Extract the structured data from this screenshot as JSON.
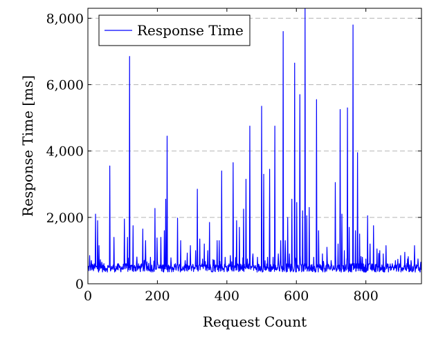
{
  "colors": {
    "series": "#0000ff",
    "grid": "#b3b3b3",
    "axis": "#000000"
  },
  "chart_data": {
    "type": "line",
    "title": "",
    "xlabel": "Request Count",
    "ylabel": "Response Time [ms]",
    "xlim": [
      0,
      960
    ],
    "ylim": [
      0,
      8300
    ],
    "x_ticks": [
      0,
      200,
      400,
      600,
      800
    ],
    "x_tick_labels": [
      "0",
      "200",
      "400",
      "600",
      "800"
    ],
    "y_ticks": [
      0,
      2000,
      4000,
      6000,
      8000
    ],
    "y_tick_labels": [
      "0",
      "2,000",
      "4,000",
      "6,000",
      "8,000"
    ],
    "grid": "horizontal dashed (major y)",
    "legend_position": "top-left",
    "series": [
      {
        "name": "Response Time",
        "baseline": 480,
        "peaks": [
          [
            5,
            850
          ],
          [
            10,
            700
          ],
          [
            22,
            2100
          ],
          [
            28,
            1900
          ],
          [
            32,
            1150
          ],
          [
            40,
            650
          ],
          [
            63,
            3550
          ],
          [
            75,
            1400
          ],
          [
            105,
            1950
          ],
          [
            114,
            1400
          ],
          [
            120,
            6850
          ],
          [
            130,
            1750
          ],
          [
            140,
            650
          ],
          [
            158,
            1650
          ],
          [
            166,
            1300
          ],
          [
            180,
            800
          ],
          [
            193,
            2270
          ],
          [
            199,
            1380
          ],
          [
            210,
            1400
          ],
          [
            220,
            1600
          ],
          [
            224,
            2550
          ],
          [
            228,
            4450
          ],
          [
            240,
            600
          ],
          [
            258,
            1980
          ],
          [
            267,
            1300
          ],
          [
            280,
            700
          ],
          [
            295,
            1150
          ],
          [
            310,
            1000
          ],
          [
            315,
            2850
          ],
          [
            322,
            1350
          ],
          [
            335,
            1200
          ],
          [
            345,
            1000
          ],
          [
            350,
            1850
          ],
          [
            362,
            700
          ],
          [
            372,
            1300
          ],
          [
            378,
            1300
          ],
          [
            385,
            3400
          ],
          [
            395,
            800
          ],
          [
            410,
            850
          ],
          [
            418,
            3650
          ],
          [
            428,
            1900
          ],
          [
            436,
            1700
          ],
          [
            448,
            2250
          ],
          [
            455,
            3150
          ],
          [
            466,
            4750
          ],
          [
            475,
            900
          ],
          [
            488,
            800
          ],
          [
            500,
            5350
          ],
          [
            506,
            3300
          ],
          [
            517,
            800
          ],
          [
            523,
            3450
          ],
          [
            533,
            800
          ],
          [
            538,
            4750
          ],
          [
            548,
            900
          ],
          [
            555,
            1300
          ],
          [
            562,
            7600
          ],
          [
            568,
            1300
          ],
          [
            575,
            2000
          ],
          [
            580,
            900
          ],
          [
            587,
            2550
          ],
          [
            595,
            6650
          ],
          [
            601,
            2450
          ],
          [
            610,
            5700
          ],
          [
            618,
            2200
          ],
          [
            625,
            8300
          ],
          [
            630,
            2050
          ],
          [
            637,
            2300
          ],
          [
            650,
            800
          ],
          [
            658,
            5550
          ],
          [
            664,
            1600
          ],
          [
            675,
            900
          ],
          [
            688,
            1100
          ],
          [
            700,
            700
          ],
          [
            712,
            3050
          ],
          [
            720,
            1200
          ],
          [
            726,
            5250
          ],
          [
            731,
            2100
          ],
          [
            738,
            1000
          ],
          [
            747,
            5300
          ],
          [
            752,
            1700
          ],
          [
            763,
            7800
          ],
          [
            770,
            1600
          ],
          [
            776,
            3950
          ],
          [
            782,
            1500
          ],
          [
            790,
            800
          ],
          [
            805,
            2050
          ],
          [
            812,
            1200
          ],
          [
            822,
            1750
          ],
          [
            832,
            1050
          ],
          [
            840,
            1000
          ],
          [
            850,
            900
          ],
          [
            858,
            1150
          ],
          [
            870,
            600
          ],
          [
            885,
            700
          ],
          [
            900,
            850
          ],
          [
            912,
            950
          ],
          [
            920,
            750
          ],
          [
            930,
            700
          ],
          [
            940,
            1150
          ],
          [
            950,
            750
          ],
          [
            958,
            650
          ]
        ]
      }
    ]
  }
}
